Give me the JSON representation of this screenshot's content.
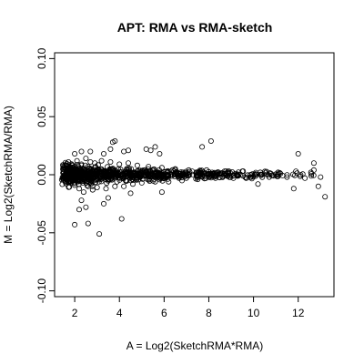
{
  "chart_data": {
    "type": "scatter",
    "title": "APT: RMA vs RMA-sketch",
    "xlabel": "A = Log2(SketchRMA*RMA)",
    "ylabel": "M = Log2(SketchRMA/RMA)",
    "xlim": [
      1.1,
      13.6
    ],
    "ylim": [
      -0.105,
      0.105
    ],
    "xticks": [
      2,
      4,
      6,
      8,
      10,
      12
    ],
    "yticks": [
      -0.1,
      -0.05,
      0.0,
      0.05,
      0.1
    ],
    "ytick_labels": [
      "-0.10",
      "-0.05",
      "0.00",
      "0.05",
      "0.10"
    ],
    "grid": false,
    "marker": "open-circle",
    "series": [
      {
        "points": [
          [
            1.5,
            0.002
          ],
          [
            1.6,
            -0.003
          ],
          [
            1.7,
            0.004
          ],
          [
            1.8,
            -0.006
          ],
          [
            1.9,
            0.008
          ],
          [
            2.0,
            -0.009
          ],
          [
            2.1,
            0.012
          ],
          [
            2.2,
            -0.012
          ],
          [
            2.3,
            0.009
          ],
          [
            2.4,
            -0.015
          ],
          [
            2.5,
            0.014
          ],
          [
            2.6,
            -0.01
          ],
          [
            2.7,
            0.011
          ],
          [
            2.8,
            -0.013
          ],
          [
            2.9,
            0.01
          ],
          [
            3.0,
            -0.011
          ],
          [
            3.2,
            0.012
          ],
          [
            3.4,
            -0.012
          ],
          [
            3.6,
            0.011
          ],
          [
            3.8,
            -0.01
          ],
          [
            4.0,
            0.009
          ],
          [
            4.2,
            -0.01
          ],
          [
            4.4,
            0.01
          ],
          [
            4.6,
            -0.008
          ],
          [
            4.8,
            0.008
          ],
          [
            5.0,
            -0.007
          ],
          [
            5.3,
            0.007
          ],
          [
            5.6,
            -0.006
          ],
          [
            5.9,
            0.006
          ],
          [
            6.2,
            -0.006
          ],
          [
            6.5,
            0.005
          ],
          [
            6.8,
            -0.005
          ],
          [
            7.1,
            0.004
          ],
          [
            7.5,
            -0.004
          ],
          [
            7.9,
            0.004
          ],
          [
            8.3,
            -0.003
          ],
          [
            8.7,
            0.003
          ],
          [
            9.1,
            -0.003
          ],
          [
            9.5,
            0.003
          ],
          [
            9.9,
            -0.002
          ],
          [
            10.3,
            0.002
          ],
          [
            10.7,
            -0.002
          ],
          [
            11.1,
            0.002
          ],
          [
            11.5,
            -0.002
          ],
          [
            11.9,
            0.003
          ],
          [
            12.3,
            -0.003
          ],
          [
            12.7,
            0.004
          ],
          [
            13.0,
            -0.002
          ],
          [
            2.0,
            0.018
          ],
          [
            2.3,
            0.02
          ],
          [
            2.7,
            0.02
          ],
          [
            3.3,
            0.018
          ],
          [
            3.6,
            0.022
          ],
          [
            3.7,
            0.028
          ],
          [
            3.8,
            0.029
          ],
          [
            4.2,
            0.02
          ],
          [
            4.4,
            0.021
          ],
          [
            5.2,
            0.022
          ],
          [
            5.4,
            0.021
          ],
          [
            5.6,
            0.024
          ],
          [
            5.8,
            0.018
          ],
          [
            7.7,
            0.024
          ],
          [
            8.1,
            0.029
          ],
          [
            12.0,
            0.018
          ],
          [
            12.7,
            0.01
          ],
          [
            2.0,
            -0.043
          ],
          [
            2.2,
            -0.03
          ],
          [
            2.3,
            -0.022
          ],
          [
            2.5,
            -0.028
          ],
          [
            2.6,
            -0.042
          ],
          [
            3.1,
            -0.051
          ],
          [
            3.3,
            -0.025
          ],
          [
            3.5,
            -0.02
          ],
          [
            4.1,
            -0.038
          ],
          [
            4.5,
            -0.016
          ],
          [
            5.9,
            -0.015
          ],
          [
            10.2,
            -0.008
          ],
          [
            11.8,
            -0.012
          ],
          [
            12.9,
            -0.01
          ],
          [
            13.2,
            -0.019
          ]
        ]
      }
    ]
  }
}
